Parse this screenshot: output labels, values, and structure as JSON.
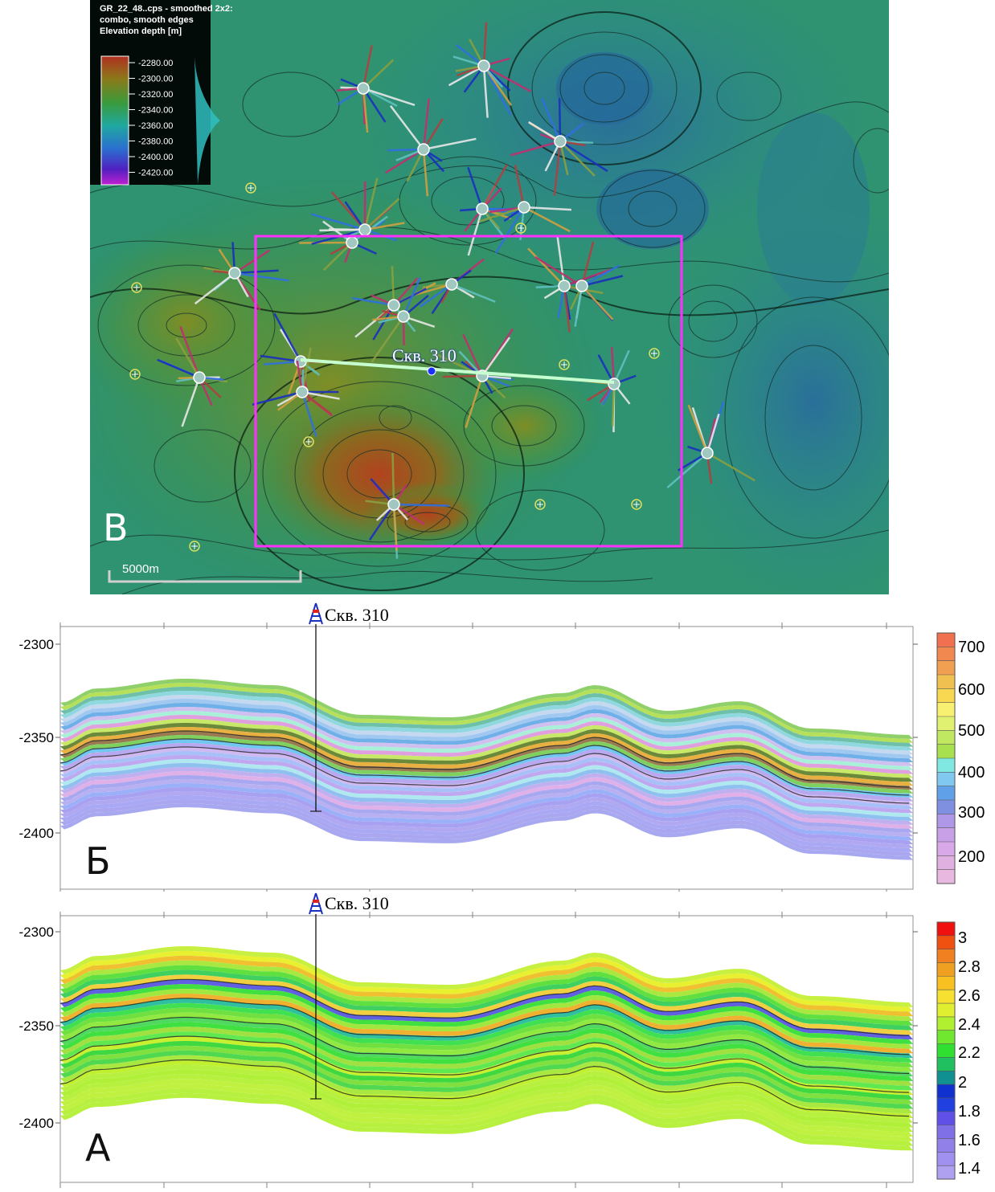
{
  "map": {
    "title_lines": [
      "GR_22_48..cps - smoothed 2x2:",
      "combo, smooth edges",
      "Elevation depth [m]"
    ],
    "legend_values": [
      "-2280.00",
      "-2300.00",
      "-2320.00",
      "-2340.00",
      "-2360.00",
      "-2380.00",
      "-2400.00",
      "-2420.00"
    ],
    "scale_bar_label": "5000m",
    "panel_letter": "В",
    "well_label": "Скв. 310",
    "colors": {
      "deep": "#2a7fa0",
      "mid": "#2f9a4a",
      "high": "#a5521f",
      "frame": "#ff30ff"
    }
  },
  "section_b": {
    "panel_letter": "Б",
    "well_label": "Скв. 310",
    "y_ticks": [
      "-2300",
      "-2350",
      "-2400"
    ],
    "colorbar_labels": [
      "700",
      "600",
      "500",
      "400",
      "300",
      "200"
    ]
  },
  "section_a": {
    "panel_letter": "А",
    "well_label": "Скв. 310",
    "y_ticks": [
      "-2300",
      "-2350",
      "-2400"
    ],
    "colorbar_labels": [
      "3",
      "2.8",
      "2.6",
      "2.4",
      "2.2",
      "2",
      "1.8",
      "1.6",
      "1.4"
    ]
  }
}
